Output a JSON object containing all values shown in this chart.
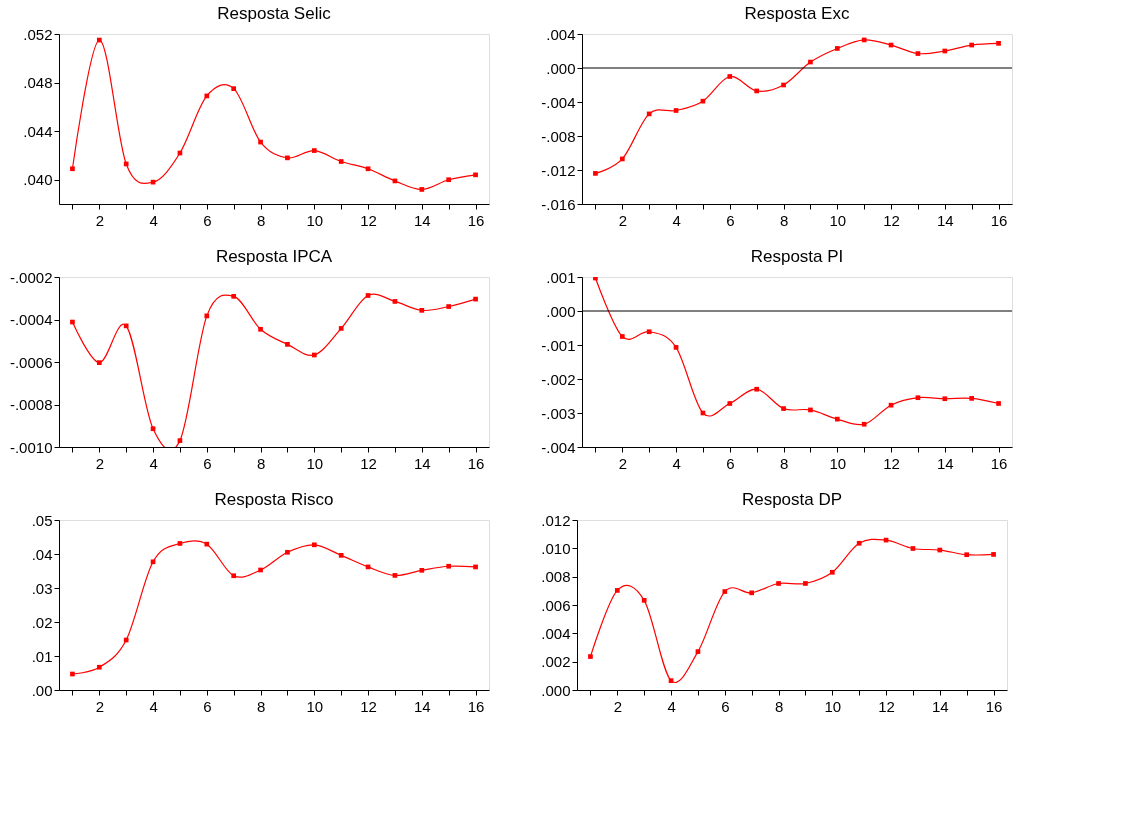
{
  "chart_data": [
    {
      "type": "line",
      "title": "Resposta Selic",
      "x": [
        1,
        2,
        3,
        4,
        5,
        6,
        7,
        8,
        9,
        10,
        11,
        12,
        13,
        14,
        15,
        16
      ],
      "xlim": [
        0.5,
        16.5
      ],
      "xticks": [
        {
          "value": 1,
          "label": null
        },
        2,
        {
          "value": 3,
          "label": null
        },
        4,
        {
          "value": 5,
          "label": null
        },
        6,
        {
          "value": 7,
          "label": null
        },
        8,
        {
          "value": 9,
          "label": null
        },
        10,
        {
          "value": 11,
          "label": null
        },
        12,
        {
          "value": 13,
          "label": null
        },
        14,
        {
          "value": 15,
          "label": null
        },
        16
      ],
      "ylim": [
        0.038,
        0.052
      ],
      "yticks": [
        {
          "value": 0.04,
          "label": ".040"
        },
        {
          "value": 0.044,
          "label": ".044"
        },
        {
          "value": 0.048,
          "label": ".048"
        },
        {
          "value": 0.052,
          "label": ".052"
        }
      ],
      "series": [
        {
          "color": "#ff0000",
          "values": [
            0.0409,
            0.0515,
            0.0413,
            0.0398,
            0.0422,
            0.0469,
            0.0475,
            0.0431,
            0.0418,
            0.0424,
            0.0415,
            0.0409,
            0.0399,
            0.0392,
            0.04,
            0.0404
          ]
        }
      ],
      "marker": "square",
      "grid": false
    },
    {
      "type": "line",
      "title": "Resposta Exc",
      "x": [
        1,
        2,
        3,
        4,
        5,
        6,
        7,
        8,
        9,
        10,
        11,
        12,
        13,
        14,
        15,
        16
      ],
      "xlim": [
        0.5,
        16.5
      ],
      "xticks": [
        {
          "value": 1,
          "label": null
        },
        2,
        {
          "value": 3,
          "label": null
        },
        4,
        {
          "value": 5,
          "label": null
        },
        6,
        {
          "value": 7,
          "label": null
        },
        8,
        {
          "value": 9,
          "label": null
        },
        10,
        {
          "value": 11,
          "label": null
        },
        12,
        {
          "value": 13,
          "label": null
        },
        14,
        {
          "value": 15,
          "label": null
        },
        16
      ],
      "ylim": [
        -0.016,
        0.004
      ],
      "yticks": [
        {
          "value": -0.016,
          "label": "-.016"
        },
        {
          "value": -0.012,
          "label": "-.012"
        },
        {
          "value": -0.008,
          "label": "-.008"
        },
        {
          "value": -0.004,
          "label": "-.004"
        },
        {
          "value": 0,
          "label": ".000"
        },
        {
          "value": 0.004,
          "label": ".004"
        }
      ],
      "series": [
        {
          "color": "#ff0000",
          "values": [
            -0.0124,
            -0.0107,
            -0.0054,
            -0.005,
            -0.0039,
            -0.001,
            -0.0027,
            -0.002,
            0.0007,
            0.0023,
            0.0033,
            0.0027,
            0.0017,
            0.002,
            0.0027,
            0.0029
          ]
        }
      ],
      "ref_lines": [
        {
          "axis": "y",
          "value": 0,
          "color": "#000000"
        }
      ],
      "marker": "square",
      "grid": false
    },
    {
      "type": "line",
      "title": "Resposta IPCA",
      "x": [
        1,
        2,
        3,
        4,
        5,
        6,
        7,
        8,
        9,
        10,
        11,
        12,
        13,
        14,
        15,
        16
      ],
      "xlim": [
        0.5,
        16.5
      ],
      "xticks": [
        {
          "value": 1,
          "label": null
        },
        2,
        {
          "value": 3,
          "label": null
        },
        4,
        {
          "value": 5,
          "label": null
        },
        6,
        {
          "value": 7,
          "label": null
        },
        8,
        {
          "value": 9,
          "label": null
        },
        10,
        {
          "value": 11,
          "label": null
        },
        12,
        {
          "value": 13,
          "label": null
        },
        14,
        {
          "value": 15,
          "label": null
        },
        16
      ],
      "ylim": [
        -0.001,
        -0.0002
      ],
      "yticks": [
        {
          "value": -0.001,
          "label": "-.0010"
        },
        {
          "value": -0.0008,
          "label": "-.0008"
        },
        {
          "value": -0.0006,
          "label": "-.0006"
        },
        {
          "value": -0.0004,
          "label": "-.0004"
        },
        {
          "value": -0.0002,
          "label": "-.0002"
        }
      ],
      "series": [
        {
          "color": "#ff0000",
          "values": [
            -0.000412,
            -0.000603,
            -0.00043,
            -0.000914,
            -0.00097,
            -0.000383,
            -0.000291,
            -0.000446,
            -0.000517,
            -0.000567,
            -0.000442,
            -0.000287,
            -0.000315,
            -0.000357,
            -0.000339,
            -0.000304
          ]
        }
      ],
      "marker": "square",
      "grid": false
    },
    {
      "type": "line",
      "title": "Resposta PI",
      "x": [
        1,
        2,
        3,
        4,
        5,
        6,
        7,
        8,
        9,
        10,
        11,
        12,
        13,
        14,
        15,
        16
      ],
      "xlim": [
        0.5,
        16.5
      ],
      "xticks": [
        {
          "value": 1,
          "label": null
        },
        2,
        {
          "value": 3,
          "label": null
        },
        4,
        {
          "value": 5,
          "label": null
        },
        6,
        {
          "value": 7,
          "label": null
        },
        8,
        {
          "value": 9,
          "label": null
        },
        10,
        {
          "value": 11,
          "label": null
        },
        12,
        {
          "value": 13,
          "label": null
        },
        14,
        {
          "value": 15,
          "label": null
        },
        16
      ],
      "ylim": [
        -0.004,
        0.001
      ],
      "yticks": [
        {
          "value": -0.004,
          "label": "-.004"
        },
        {
          "value": -0.003,
          "label": "-.003"
        },
        {
          "value": -0.002,
          "label": "-.002"
        },
        {
          "value": -0.001,
          "label": "-.001"
        },
        {
          "value": 0,
          "label": ".000"
        },
        {
          "value": 0.001,
          "label": ".001"
        }
      ],
      "series": [
        {
          "color": "#ff0000",
          "values": [
            0.00097,
            -0.00075,
            -0.00061,
            -0.00107,
            -0.003,
            -0.00272,
            -0.0023,
            -0.00287,
            -0.00291,
            -0.00318,
            -0.00333,
            -0.00277,
            -0.00255,
            -0.00258,
            -0.00257,
            -0.00272
          ]
        }
      ],
      "ref_lines": [
        {
          "axis": "y",
          "value": 0,
          "color": "#000000"
        }
      ],
      "marker": "square",
      "grid": false
    },
    {
      "type": "line",
      "title": "Resposta Risco",
      "x": [
        1,
        2,
        3,
        4,
        5,
        6,
        7,
        8,
        9,
        10,
        11,
        12,
        13,
        14,
        15,
        16
      ],
      "xlim": [
        0.5,
        16.5
      ],
      "xticks": [
        {
          "value": 1,
          "label": null
        },
        2,
        {
          "value": 3,
          "label": null
        },
        4,
        {
          "value": 5,
          "label": null
        },
        6,
        {
          "value": 7,
          "label": null
        },
        8,
        {
          "value": 9,
          "label": null
        },
        10,
        {
          "value": 11,
          "label": null
        },
        12,
        {
          "value": 13,
          "label": null
        },
        14,
        {
          "value": 15,
          "label": null
        },
        16
      ],
      "ylim": [
        0,
        0.05
      ],
      "yticks": [
        {
          "value": 0,
          "label": ".00"
        },
        {
          "value": 0.01,
          "label": ".01"
        },
        {
          "value": 0.02,
          "label": ".02"
        },
        {
          "value": 0.03,
          "label": ".03"
        },
        {
          "value": 0.04,
          "label": ".04"
        },
        {
          "value": 0.05,
          "label": ".05"
        }
      ],
      "series": [
        {
          "color": "#ff0000",
          "values": [
            0.0047,
            0.0067,
            0.0147,
            0.0377,
            0.0431,
            0.0429,
            0.0336,
            0.0353,
            0.0405,
            0.0427,
            0.0396,
            0.0362,
            0.0337,
            0.0352,
            0.0364,
            0.0362
          ]
        }
      ],
      "marker": "square",
      "grid": false
    },
    {
      "type": "line",
      "title": "Resposta DP",
      "x": [
        1,
        2,
        3,
        4,
        5,
        6,
        7,
        8,
        9,
        10,
        11,
        12,
        13,
        14,
        15,
        16
      ],
      "xlim": [
        0.5,
        16.5
      ],
      "xticks": [
        {
          "value": 1,
          "label": null
        },
        2,
        {
          "value": 3,
          "label": null
        },
        4,
        {
          "value": 5,
          "label": null
        },
        6,
        {
          "value": 7,
          "label": null
        },
        8,
        {
          "value": 9,
          "label": null
        },
        10,
        {
          "value": 11,
          "label": null
        },
        12,
        {
          "value": 13,
          "label": null
        },
        14,
        {
          "value": 15,
          "label": null
        },
        16
      ],
      "ylim": [
        0,
        0.012
      ],
      "yticks": [
        {
          "value": 0,
          "label": ".000"
        },
        {
          "value": 0.002,
          "label": ".002"
        },
        {
          "value": 0.004,
          "label": ".004"
        },
        {
          "value": 0.006,
          "label": ".006"
        },
        {
          "value": 0.008,
          "label": ".008"
        },
        {
          "value": 0.01,
          "label": ".010"
        },
        {
          "value": 0.012,
          "label": ".012"
        }
      ],
      "series": [
        {
          "color": "#ff0000",
          "values": [
            0.00236,
            0.00703,
            0.00633,
            0.00066,
            0.00271,
            0.00695,
            0.00686,
            0.00752,
            0.00752,
            0.00831,
            0.01036,
            0.01058,
            0.00999,
            0.00988,
            0.00955,
            0.00957
          ]
        }
      ],
      "marker": "square",
      "grid": false
    }
  ]
}
